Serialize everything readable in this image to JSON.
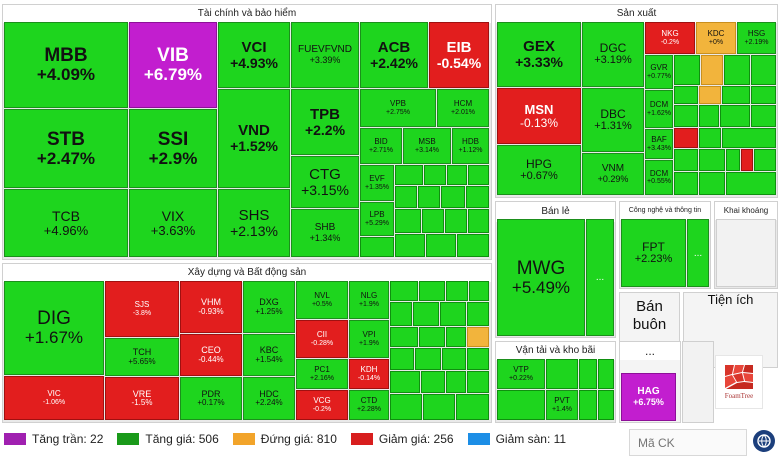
{
  "sectors": {
    "finance": {
      "title": "Tài chính và bảo hiểm",
      "tiles": [
        {
          "sym": "MBB",
          "pct": "+4.09%"
        },
        {
          "sym": "VIB",
          "pct": "+6.79%"
        },
        {
          "sym": "VCI",
          "pct": "+4.93%"
        },
        {
          "sym": "FUEVFVND",
          "pct": "+3.39%"
        },
        {
          "sym": "ACB",
          "pct": "+2.42%"
        },
        {
          "sym": "EIB",
          "pct": "-0.54%"
        },
        {
          "sym": "STB",
          "pct": "+2.47%"
        },
        {
          "sym": "SSI",
          "pct": "+2.9%"
        },
        {
          "sym": "VND",
          "pct": "+1.52%"
        },
        {
          "sym": "TPB",
          "pct": "+2.2%"
        },
        {
          "sym": "VPB",
          "pct": "+2.75%"
        },
        {
          "sym": "HCM",
          "pct": "+2.01%"
        },
        {
          "sym": "BID",
          "pct": "+2.71%"
        },
        {
          "sym": "MSB",
          "pct": "+3.14%"
        },
        {
          "sym": "HDB",
          "pct": "+1.12%"
        },
        {
          "sym": "TCB",
          "pct": "+4.96%"
        },
        {
          "sym": "VIX",
          "pct": "+3.63%"
        },
        {
          "sym": "SHS",
          "pct": "+2.13%"
        },
        {
          "sym": "CTG",
          "pct": "+3.15%"
        },
        {
          "sym": "EVF",
          "pct": "+1.35%"
        },
        {
          "sym": "SHB",
          "pct": "+1.34%"
        },
        {
          "sym": "LPB",
          "pct": "+5.29%"
        }
      ]
    },
    "manufacturing": {
      "title": "Sản xuất",
      "tiles": [
        {
          "sym": "GEX",
          "pct": "+3.33%"
        },
        {
          "sym": "DGC",
          "pct": "+3.19%"
        },
        {
          "sym": "NKG",
          "pct": "-0.2%"
        },
        {
          "sym": "KDC",
          "pct": "+0%"
        },
        {
          "sym": "HSG",
          "pct": "+2.19%"
        },
        {
          "sym": "GVR",
          "pct": "+0.77%"
        },
        {
          "sym": "MSN",
          "pct": "-0.13%"
        },
        {
          "sym": "DBC",
          "pct": "+1.31%"
        },
        {
          "sym": "DCM",
          "pct": "+1.62%"
        },
        {
          "sym": "BAF",
          "pct": "+3.43%"
        },
        {
          "sym": "HPG",
          "pct": "+0.67%"
        },
        {
          "sym": "VNM",
          "pct": "+0.29%"
        },
        {
          "sym": "DCM",
          "pct": "+0.55%"
        }
      ]
    },
    "retail": {
      "title": "Bán lẻ",
      "tiles": [
        {
          "sym": "MWG",
          "pct": "+5.49%"
        }
      ],
      "more": "..."
    },
    "tech": {
      "title": "Công nghệ và thông tin",
      "tiles": [
        {
          "sym": "FPT",
          "pct": "+2.23%"
        }
      ],
      "more": "..."
    },
    "mining": {
      "title": "Khai khoáng"
    },
    "wholesale": {
      "title": "Bán buôn"
    },
    "utilities": {
      "title": "Tiện ích"
    },
    "construction": {
      "title": "Xây dựng và Bất động sản",
      "tiles": [
        {
          "sym": "DIG",
          "pct": "+1.67%"
        },
        {
          "sym": "SJS",
          "pct": "-3.8%"
        },
        {
          "sym": "VHM",
          "pct": "-0.93%"
        },
        {
          "sym": "DXG",
          "pct": "+1.25%"
        },
        {
          "sym": "NVL",
          "pct": "+0.5%"
        },
        {
          "sym": "NLG",
          "pct": "+1.9%"
        },
        {
          "sym": "CII",
          "pct": "-0.28%"
        },
        {
          "sym": "VPI",
          "pct": "+1.9%"
        },
        {
          "sym": "TCH",
          "pct": "+5.65%"
        },
        {
          "sym": "CEO",
          "pct": "-0.44%"
        },
        {
          "sym": "KBC",
          "pct": "+1.54%"
        },
        {
          "sym": "PC1",
          "pct": "+2.16%"
        },
        {
          "sym": "KDH",
          "pct": "-0.14%"
        },
        {
          "sym": "VIC",
          "pct": "-1.06%"
        },
        {
          "sym": "VRE",
          "pct": "-1.5%"
        },
        {
          "sym": "PDR",
          "pct": "+0.17%"
        },
        {
          "sym": "HDC",
          "pct": "+2.24%"
        },
        {
          "sym": "VCG",
          "pct": "-0.2%"
        },
        {
          "sym": "CTD",
          "pct": "+2.28%"
        }
      ]
    },
    "transport": {
      "title": "Vận tải và kho bãi",
      "tiles": [
        {
          "sym": "VTP",
          "pct": "+0.22%"
        },
        {
          "sym": "PVT",
          "pct": "+1.4%"
        }
      ]
    },
    "other": {
      "more": "...",
      "tiles": [
        {
          "sym": "HAG",
          "pct": "+6.75%"
        }
      ]
    }
  },
  "legend": [
    {
      "label": "Tăng trần: 22",
      "color": "#a020b0"
    },
    {
      "label": "Tăng giá: 506",
      "color": "#1a9a1a"
    },
    {
      "label": "Đứng giá: 810",
      "color": "#f2a42a"
    },
    {
      "label": "Giảm giá: 256",
      "color": "#d81e1e"
    },
    {
      "label": "Giảm sàn: 11",
      "color": "#1c8ee6"
    }
  ],
  "search": {
    "placeholder": "Mã CK"
  },
  "foamtree": {
    "label": "FoamTree"
  }
}
